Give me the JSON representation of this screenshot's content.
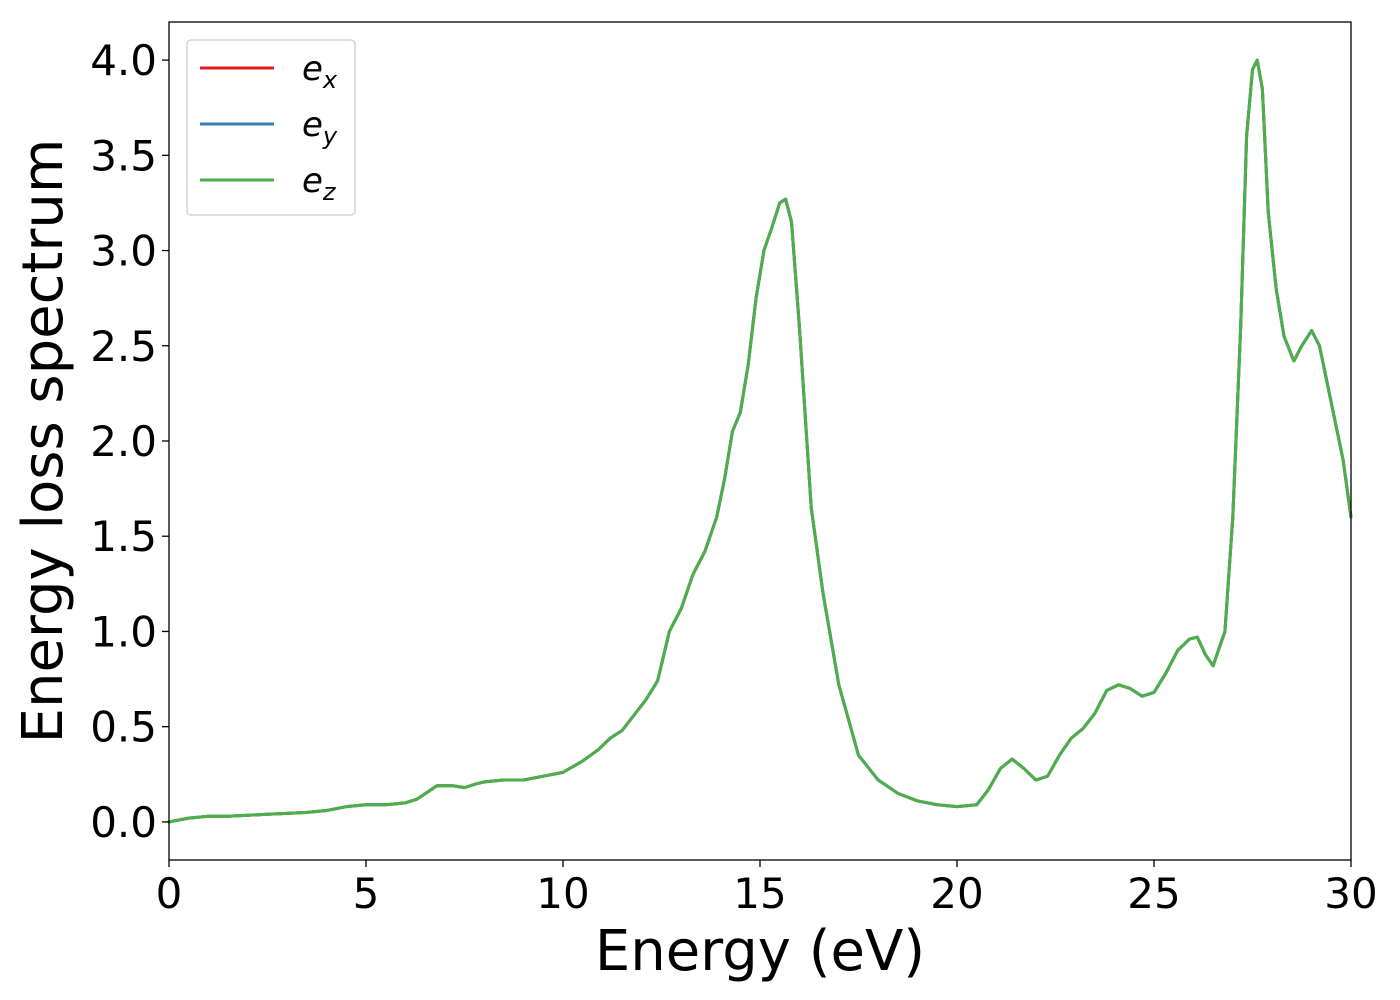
{
  "chart_data": {
    "type": "line",
    "title": "",
    "xlabel": "Energy (eV)",
    "ylabel": "Energy loss spectrum",
    "xlim": [
      0,
      30
    ],
    "ylim": [
      -0.2,
      4.2
    ],
    "xticks": [
      0,
      5,
      10,
      15,
      20,
      25,
      30
    ],
    "xtick_labels": [
      "0",
      "5",
      "10",
      "15",
      "20",
      "25",
      "30"
    ],
    "yticks": [
      0.0,
      0.5,
      1.0,
      1.5,
      2.0,
      2.5,
      3.0,
      3.5,
      4.0
    ],
    "ytick_labels": [
      "0.0",
      "0.5",
      "1.0",
      "1.5",
      "2.0",
      "2.5",
      "3.0",
      "3.5",
      "4.0"
    ],
    "grid": false,
    "legend_position": "top-left",
    "series": [
      {
        "name": "e_x",
        "label_base": "e",
        "label_sub": "x",
        "color": "#e41a1c"
      },
      {
        "name": "e_y",
        "label_base": "e",
        "label_sub": "y",
        "color": "#377eb8"
      },
      {
        "name": "e_z",
        "label_base": "e",
        "label_sub": "z",
        "color": "#4daf4a"
      }
    ],
    "x": [
      0,
      0.5,
      1,
      1.5,
      2,
      2.5,
      3,
      3.5,
      4,
      4.5,
      5,
      5.5,
      6,
      6.3,
      6.8,
      7.2,
      7.5,
      7.8,
      8,
      8.5,
      9,
      9.5,
      10,
      10.5,
      10.9,
      11.2,
      11.5,
      11.8,
      12.1,
      12.4,
      12.7,
      13,
      13.3,
      13.6,
      13.9,
      14.1,
      14.3,
      14.5,
      14.7,
      14.9,
      15.1,
      15.3,
      15.5,
      15.65,
      15.8,
      16,
      16.3,
      16.6,
      17,
      17.5,
      18,
      18.5,
      19,
      19.5,
      20,
      20.5,
      20.8,
      21.1,
      21.4,
      21.7,
      22,
      22.3,
      22.6,
      22.9,
      23.2,
      23.5,
      23.8,
      24.1,
      24.4,
      24.7,
      25,
      25.3,
      25.6,
      25.9,
      26.1,
      26.3,
      26.5,
      26.8,
      27,
      27.2,
      27.35,
      27.5,
      27.62,
      27.75,
      27.9,
      28.1,
      28.3,
      28.55,
      28.75,
      29,
      29.2,
      29.5,
      29.8,
      30
    ],
    "y": [
      0.0,
      0.02,
      0.03,
      0.03,
      0.035,
      0.04,
      0.045,
      0.05,
      0.06,
      0.08,
      0.09,
      0.09,
      0.1,
      0.12,
      0.19,
      0.19,
      0.18,
      0.2,
      0.21,
      0.22,
      0.22,
      0.24,
      0.26,
      0.32,
      0.38,
      0.44,
      0.48,
      0.56,
      0.64,
      0.74,
      1.0,
      1.12,
      1.3,
      1.42,
      1.6,
      1.8,
      2.05,
      2.15,
      2.4,
      2.75,
      3.0,
      3.12,
      3.25,
      3.27,
      3.15,
      2.6,
      1.65,
      1.2,
      0.72,
      0.35,
      0.22,
      0.15,
      0.11,
      0.09,
      0.08,
      0.09,
      0.17,
      0.28,
      0.33,
      0.28,
      0.22,
      0.24,
      0.35,
      0.44,
      0.49,
      0.57,
      0.69,
      0.72,
      0.7,
      0.66,
      0.68,
      0.78,
      0.9,
      0.96,
      0.97,
      0.88,
      0.82,
      1.0,
      1.6,
      2.6,
      3.6,
      3.95,
      4.0,
      3.85,
      3.2,
      2.8,
      2.55,
      2.42,
      2.5,
      2.58,
      2.5,
      2.2,
      1.9,
      1.6
    ]
  }
}
